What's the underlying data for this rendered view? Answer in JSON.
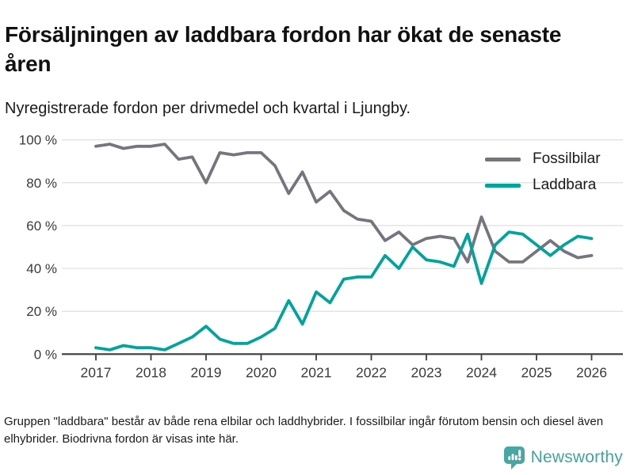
{
  "header": {
    "title": "Försäljningen av laddbara fordon har ökat de senaste åren",
    "subtitle": "Nyregistrerade fordon per drivmedel och kvartal i Ljungby."
  },
  "chart_data": {
    "type": "line",
    "title": "Nyregistrerade fordon per drivmedel och kvartal i Ljungby",
    "x_interval": "quarter",
    "x_start": "2017 Q1",
    "x_end": "2026 Q1",
    "xticks": [
      "2017",
      "2018",
      "2019",
      "2020",
      "2021",
      "2022",
      "2023",
      "2024",
      "2025",
      "2026"
    ],
    "yticks": [
      0,
      20,
      40,
      60,
      80,
      100
    ],
    "ytick_suffix": " %",
    "ylim": [
      0,
      100
    ],
    "grid": true,
    "legend_position": "top-right",
    "series": [
      {
        "name": "Fossilbilar",
        "color": "#75757d",
        "values": [
          97,
          98,
          96,
          97,
          97,
          98,
          91,
          92,
          80,
          94,
          93,
          94,
          94,
          88,
          75,
          85,
          71,
          76,
          67,
          63,
          62,
          53,
          57,
          51,
          54,
          55,
          54,
          43,
          64,
          48,
          43,
          43,
          48,
          53,
          48,
          45,
          46
        ]
      },
      {
        "name": "Laddbara",
        "color": "#00a49c",
        "values": [
          3,
          2,
          4,
          3,
          3,
          2,
          5,
          8,
          13,
          7,
          5,
          5,
          8,
          12,
          25,
          14,
          29,
          24,
          35,
          36,
          36,
          46,
          40,
          50,
          44,
          43,
          41,
          56,
          33,
          51,
          57,
          56,
          51,
          46,
          51,
          55,
          54
        ]
      }
    ],
    "axis_color": "#3b3b3b",
    "grid_color": "#dcdcdc",
    "tick_label_color": "#3a3a3a"
  },
  "footer": {
    "note": "Gruppen \"laddbara\" består av både rena elbilar och laddhybrider. I fossilbilar ingår förutom bensin och diesel även elhybrider. Biodrivna fordon är visas inte här.",
    "brand": "Newsworthy",
    "brand_color": "#40a5a2",
    "brand_icon_color": "#48a7a3"
  }
}
